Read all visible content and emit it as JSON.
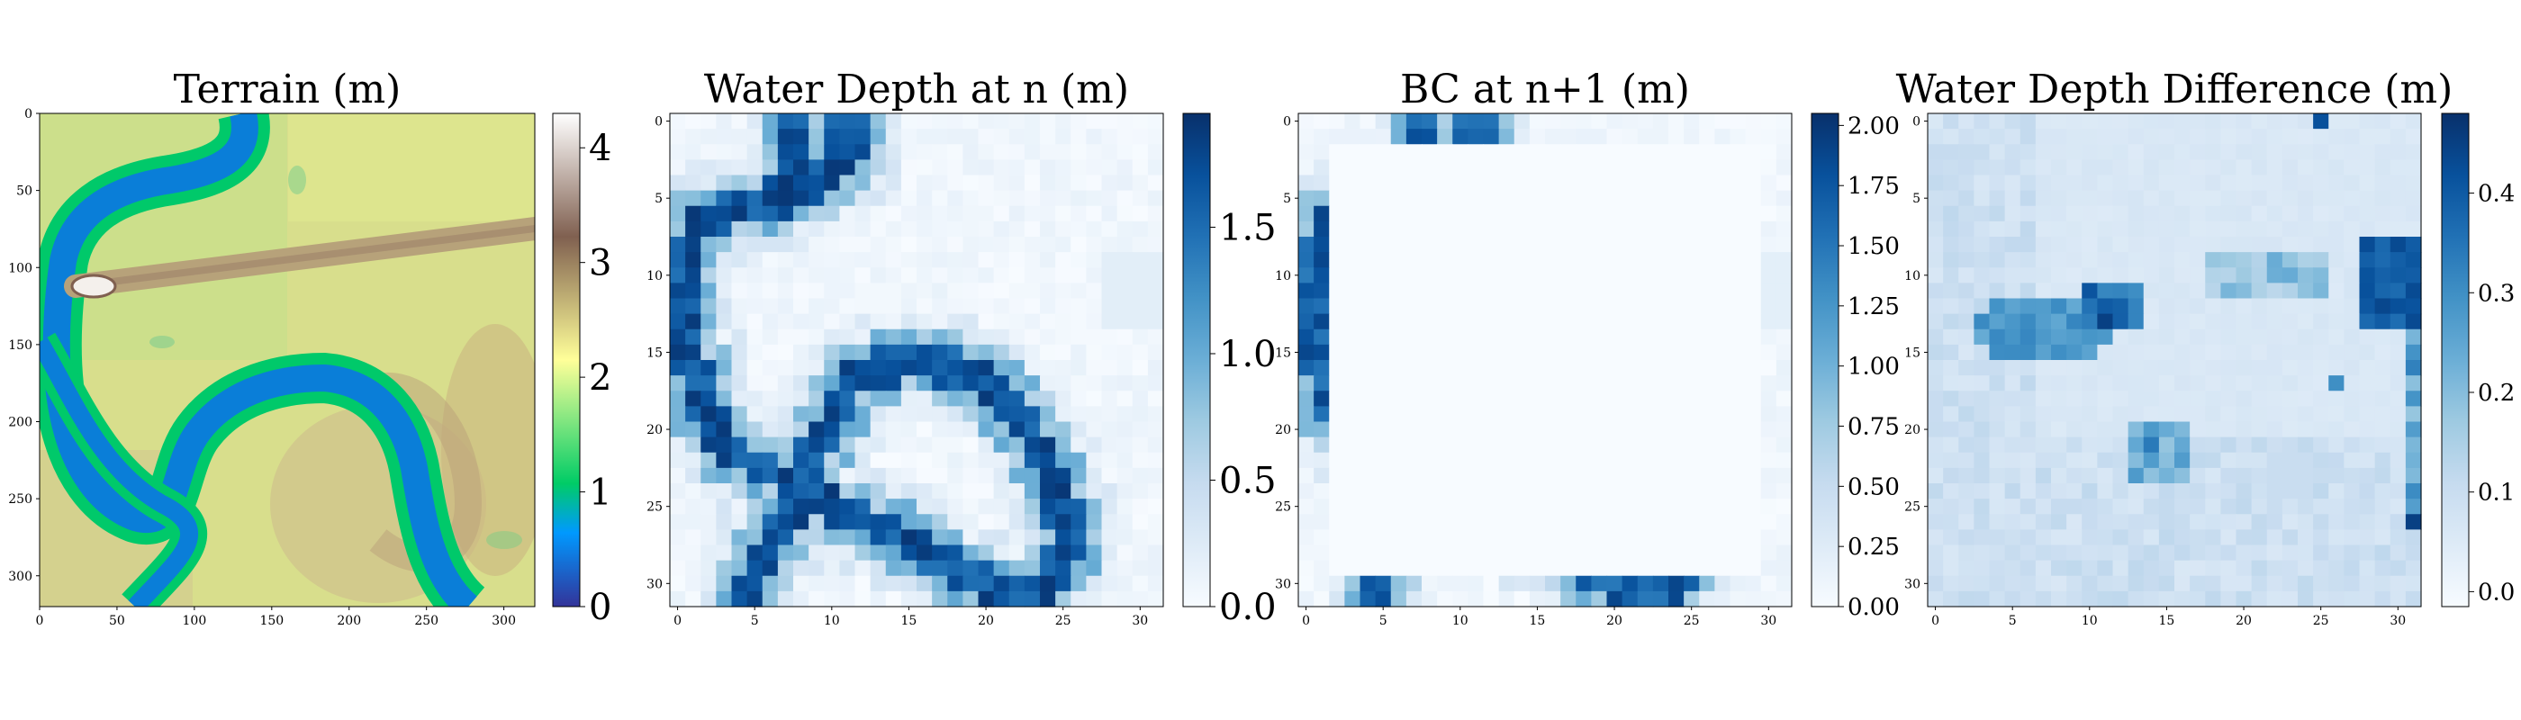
{
  "chart_data": [
    {
      "type": "heatmap",
      "title": "Terrain (m)",
      "colormap": "terrain",
      "xticks": [
        "0",
        "50",
        "100",
        "150",
        "200",
        "250",
        "300"
      ],
      "yticks": [
        "0",
        "50",
        "100",
        "150",
        "200",
        "250",
        "300"
      ],
      "xlim": [
        0,
        320
      ],
      "ylim": [
        320,
        0
      ],
      "colorbar": {
        "range": [
          0,
          4.3
        ],
        "ticks": [
          "0",
          "1",
          "2",
          "3",
          "4"
        ]
      },
      "features": {
        "river": "meandering channel",
        "ridge": "raised band from (25,112) to (320,75)"
      }
    },
    {
      "type": "heatmap",
      "title": "Water Depth at n (m)",
      "colormap": "Blues",
      "xticks": [
        "0",
        "5",
        "10",
        "15",
        "20",
        "25",
        "30"
      ],
      "yticks": [
        "0",
        "5",
        "10",
        "15",
        "20",
        "25",
        "30"
      ],
      "grid_size": [
        32,
        32
      ],
      "colorbar": {
        "range": [
          0,
          1.95
        ],
        "ticks": [
          "0.0",
          "0.5",
          "1.0",
          "1.5"
        ]
      }
    },
    {
      "type": "heatmap",
      "title": "BC at n+1 (m)",
      "colormap": "Blues",
      "xticks": [
        "0",
        "5",
        "10",
        "15",
        "20",
        "25",
        "30"
      ],
      "yticks": [
        "0",
        "5",
        "10",
        "15",
        "20",
        "25",
        "30"
      ],
      "grid_size": [
        32,
        32
      ],
      "colorbar": {
        "range": [
          0,
          2.05
        ],
        "ticks": [
          "0.00",
          "0.25",
          "0.50",
          "0.75",
          "1.00",
          "1.25",
          "1.50",
          "1.75",
          "2.00"
        ]
      }
    },
    {
      "type": "heatmap",
      "title": "Water Depth Difference (m)",
      "colormap": "Blues",
      "xticks": [
        "0",
        "5",
        "10",
        "15",
        "20",
        "25",
        "30"
      ],
      "yticks": [
        "0",
        "5",
        "10",
        "15",
        "20",
        "25",
        "30"
      ],
      "grid_size": [
        32,
        32
      ],
      "colorbar": {
        "range": [
          -0.015,
          0.48
        ],
        "ticks": [
          "0.0",
          "0.1",
          "0.2",
          "0.3",
          "0.4"
        ]
      }
    }
  ]
}
